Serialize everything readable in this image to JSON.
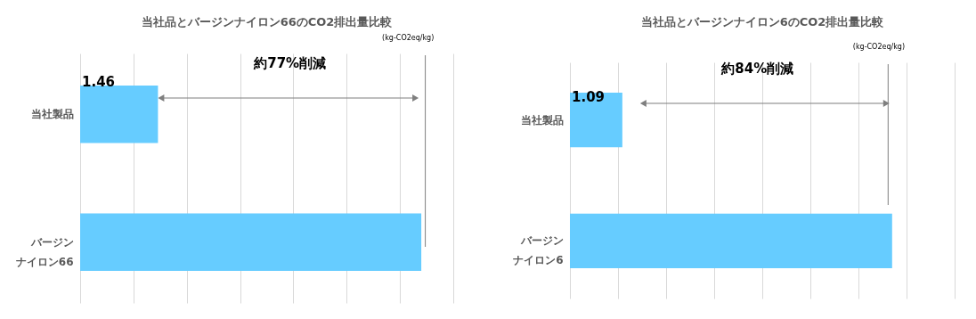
{
  "chart_data": [
    {
      "type": "bar",
      "orientation": "horizontal",
      "title": "当社品とバージンナイロン66のCO2排出量比較",
      "categories": [
        "当社製品",
        "バージンナイロン66"
      ],
      "values": [
        1.46,
        6.4
      ],
      "color": "#66ccff",
      "value_labels": [
        "1.46",
        null
      ],
      "xlim": [
        0,
        7
      ],
      "xticks": [
        {
          "value": 0,
          "label": null
        },
        {
          "value": 1,
          "label": null
        },
        {
          "value": 2,
          "label": null
        },
        {
          "value": 3,
          "label": null
        },
        {
          "value": 4,
          "label": null
        },
        {
          "value": 5,
          "label": null
        },
        {
          "value": 6,
          "label": null
        },
        {
          "value": 7,
          "label": null
        }
      ],
      "grid": "x",
      "annotations": [
        "約77%削減",
        "(kg-CO2eq/kg)"
      ]
    },
    {
      "type": "bar",
      "orientation": "horizontal",
      "title": "当社品とバージンナイロン6のCO2排出量比較",
      "categories": [
        "当社製品",
        "バージンナイロン6"
      ],
      "values": [
        1.09,
        6.7
      ],
      "color": "#66ccff",
      "value_labels": [
        "1.09",
        null
      ],
      "xlim": [
        0,
        8
      ],
      "xticks": [
        {
          "value": 0,
          "label": null
        },
        {
          "value": 1,
          "label": null
        },
        {
          "value": 2,
          "label": null
        },
        {
          "value": 3,
          "label": null
        },
        {
          "value": 4,
          "label": null
        },
        {
          "value": 5,
          "label": null
        },
        {
          "value": 6,
          "label": null
        },
        {
          "value": 7,
          "label": null
        },
        {
          "value": 8,
          "label": null
        }
      ],
      "grid": "x",
      "annotations": [
        "約84%削減",
        "(kg-CO2eq/kg)"
      ]
    }
  ]
}
